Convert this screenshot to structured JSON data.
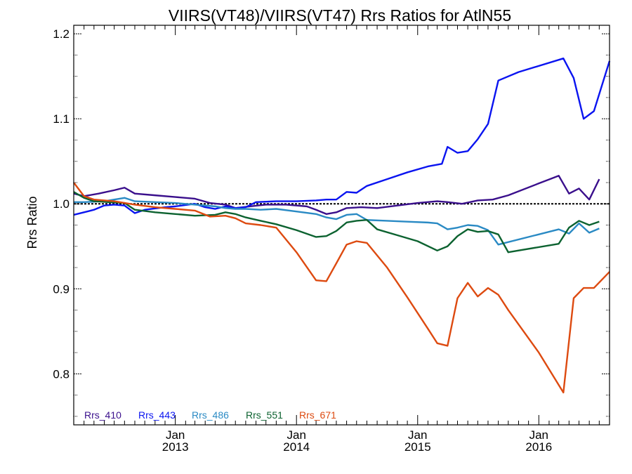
{
  "chart_data": {
    "type": "line",
    "title": "VIIRS(VT48)/VIIRS(VT47)  Rrs Ratios for AtlN55",
    "xlabel": "",
    "ylabel": "Rrs Ratio",
    "xlim": [
      "2012-03-01",
      "2016-08-01"
    ],
    "ylim": [
      0.74,
      1.21
    ],
    "yticks": [
      0.8,
      0.9,
      1.0,
      1.1,
      1.2
    ],
    "ytick_labels": [
      "0.8",
      "0.9",
      "1.0",
      "1.1",
      "1.2"
    ],
    "xticks": [
      {
        "date": "2013-01-01",
        "month": "Jan",
        "year": "2013"
      },
      {
        "date": "2014-01-01",
        "month": "Jan",
        "year": "2014"
      },
      {
        "date": "2015-01-01",
        "month": "Jan",
        "year": "2015"
      },
      {
        "date": "2016-01-01",
        "month": "Jan",
        "year": "2016"
      }
    ],
    "reference_line": 1.0,
    "legend_position": "bottom-left",
    "grid": false,
    "series": [
      {
        "name": "Rrs_410",
        "color": "#3a0f8c",
        "points": [
          [
            "2012-03-01",
            1.012
          ],
          [
            "2012-04-01",
            1.009
          ],
          [
            "2012-05-15",
            1.012
          ],
          [
            "2012-07-01",
            1.016
          ],
          [
            "2012-08-01",
            1.019
          ],
          [
            "2012-09-01",
            1.012
          ],
          [
            "2012-11-01",
            1.01
          ],
          [
            "2013-01-01",
            1.008
          ],
          [
            "2013-03-01",
            1.006
          ],
          [
            "2013-04-15",
            1.001
          ],
          [
            "2013-06-01",
            0.999
          ],
          [
            "2013-07-01",
            0.995
          ],
          [
            "2013-08-15",
            0.997
          ],
          [
            "2013-10-01",
            0.999
          ],
          [
            "2013-12-01",
            0.999
          ],
          [
            "2014-02-01",
            0.997
          ],
          [
            "2014-03-01",
            0.993
          ],
          [
            "2014-04-01",
            0.988
          ],
          [
            "2014-05-01",
            0.99
          ],
          [
            "2014-06-01",
            0.995
          ],
          [
            "2014-07-15",
            0.996
          ],
          [
            "2014-09-01",
            0.995
          ],
          [
            "2014-11-01",
            0.998
          ],
          [
            "2015-01-01",
            1.001
          ],
          [
            "2015-03-01",
            1.003
          ],
          [
            "2015-04-01",
            1.002
          ],
          [
            "2015-05-15",
            1.0
          ],
          [
            "2015-07-01",
            1.004
          ],
          [
            "2015-08-15",
            1.005
          ],
          [
            "2015-10-01",
            1.01
          ],
          [
            "2016-01-01",
            1.024
          ],
          [
            "2016-03-01",
            1.033
          ],
          [
            "2016-04-01",
            1.012
          ],
          [
            "2016-05-01",
            1.018
          ],
          [
            "2016-06-01",
            1.005
          ],
          [
            "2016-07-01",
            1.029
          ]
        ]
      },
      {
        "name": "Rrs_443",
        "color": "#0a14f0",
        "points": [
          [
            "2012-03-01",
            0.987
          ],
          [
            "2012-04-01",
            0.99
          ],
          [
            "2012-05-01",
            0.993
          ],
          [
            "2012-06-01",
            0.998
          ],
          [
            "2012-07-01",
            0.999
          ],
          [
            "2012-08-01",
            0.998
          ],
          [
            "2012-09-01",
            0.989
          ],
          [
            "2012-10-01",
            0.993
          ],
          [
            "2012-12-01",
            0.996
          ],
          [
            "2013-01-01",
            0.997
          ],
          [
            "2013-03-01",
            1.0
          ],
          [
            "2013-04-01",
            0.996
          ],
          [
            "2013-05-01",
            0.994
          ],
          [
            "2013-06-01",
            0.997
          ],
          [
            "2013-07-01",
            0.995
          ],
          [
            "2013-08-01",
            0.996
          ],
          [
            "2013-09-01",
            1.002
          ],
          [
            "2013-11-01",
            1.003
          ],
          [
            "2014-01-01",
            1.003
          ],
          [
            "2014-03-01",
            1.004
          ],
          [
            "2014-04-01",
            1.005
          ],
          [
            "2014-05-01",
            1.005
          ],
          [
            "2014-06-01",
            1.014
          ],
          [
            "2014-07-01",
            1.013
          ],
          [
            "2014-08-01",
            1.021
          ],
          [
            "2014-10-01",
            1.029
          ],
          [
            "2014-12-01",
            1.037
          ],
          [
            "2015-02-01",
            1.044
          ],
          [
            "2015-03-15",
            1.047
          ],
          [
            "2015-04-01",
            1.067
          ],
          [
            "2015-05-01",
            1.06
          ],
          [
            "2015-06-01",
            1.062
          ],
          [
            "2015-07-01",
            1.076
          ],
          [
            "2015-08-01",
            1.094
          ],
          [
            "2015-09-01",
            1.145
          ],
          [
            "2015-11-01",
            1.155
          ],
          [
            "2016-03-15",
            1.171
          ],
          [
            "2016-04-15",
            1.148
          ],
          [
            "2016-05-15",
            1.1
          ],
          [
            "2016-06-15",
            1.109
          ],
          [
            "2016-08-01",
            1.168
          ]
        ]
      },
      {
        "name": "Rrs_486",
        "color": "#2a8ac4",
        "points": [
          [
            "2012-03-01",
            1.002
          ],
          [
            "2012-04-01",
            1.002
          ],
          [
            "2012-06-01",
            1.003
          ],
          [
            "2012-07-01",
            1.005
          ],
          [
            "2012-08-01",
            1.007
          ],
          [
            "2012-09-01",
            1.003
          ],
          [
            "2012-11-01",
            1.002
          ],
          [
            "2013-01-01",
            1.001
          ],
          [
            "2013-03-01",
            0.999
          ],
          [
            "2013-05-01",
            0.997
          ],
          [
            "2013-06-01",
            0.995
          ],
          [
            "2013-07-01",
            0.994
          ],
          [
            "2013-08-01",
            0.994
          ],
          [
            "2013-09-15",
            0.993
          ],
          [
            "2013-11-01",
            0.994
          ],
          [
            "2014-01-01",
            0.991
          ],
          [
            "2014-03-01",
            0.988
          ],
          [
            "2014-04-01",
            0.984
          ],
          [
            "2014-05-01",
            0.982
          ],
          [
            "2014-06-01",
            0.987
          ],
          [
            "2014-07-01",
            0.988
          ],
          [
            "2014-08-01",
            0.981
          ],
          [
            "2014-10-01",
            0.98
          ],
          [
            "2014-12-01",
            0.979
          ],
          [
            "2015-02-01",
            0.978
          ],
          [
            "2015-03-01",
            0.977
          ],
          [
            "2015-04-01",
            0.97
          ],
          [
            "2015-05-01",
            0.972
          ],
          [
            "2015-06-01",
            0.975
          ],
          [
            "2015-07-01",
            0.974
          ],
          [
            "2015-08-01",
            0.969
          ],
          [
            "2015-09-01",
            0.952
          ],
          [
            "2016-03-01",
            0.97
          ],
          [
            "2016-04-01",
            0.965
          ],
          [
            "2016-05-01",
            0.977
          ],
          [
            "2016-06-01",
            0.966
          ],
          [
            "2016-07-01",
            0.971
          ]
        ]
      },
      {
        "name": "Rrs_551",
        "color": "#0c6230",
        "points": [
          [
            "2012-03-01",
            1.014
          ],
          [
            "2012-04-01",
            1.007
          ],
          [
            "2012-05-01",
            1.003
          ],
          [
            "2012-06-15",
            1.002
          ],
          [
            "2012-08-01",
            1.001
          ],
          [
            "2012-09-01",
            0.993
          ],
          [
            "2012-11-01",
            0.99
          ],
          [
            "2013-01-01",
            0.988
          ],
          [
            "2013-03-01",
            0.986
          ],
          [
            "2013-05-01",
            0.987
          ],
          [
            "2013-06-01",
            0.99
          ],
          [
            "2013-07-01",
            0.988
          ],
          [
            "2013-08-01",
            0.984
          ],
          [
            "2013-09-15",
            0.98
          ],
          [
            "2013-11-01",
            0.976
          ],
          [
            "2014-01-01",
            0.969
          ],
          [
            "2014-03-01",
            0.961
          ],
          [
            "2014-04-01",
            0.962
          ],
          [
            "2014-05-01",
            0.968
          ],
          [
            "2014-06-01",
            0.978
          ],
          [
            "2014-07-01",
            0.98
          ],
          [
            "2014-08-01",
            0.981
          ],
          [
            "2014-09-01",
            0.97
          ],
          [
            "2014-11-01",
            0.963
          ],
          [
            "2015-01-01",
            0.956
          ],
          [
            "2015-03-01",
            0.945
          ],
          [
            "2015-04-01",
            0.95
          ],
          [
            "2015-05-01",
            0.962
          ],
          [
            "2015-06-01",
            0.97
          ],
          [
            "2015-07-01",
            0.967
          ],
          [
            "2015-08-01",
            0.968
          ],
          [
            "2015-09-01",
            0.964
          ],
          [
            "2015-10-01",
            0.943
          ],
          [
            "2016-03-01",
            0.953
          ],
          [
            "2016-04-01",
            0.972
          ],
          [
            "2016-05-01",
            0.98
          ],
          [
            "2016-06-01",
            0.975
          ],
          [
            "2016-07-01",
            0.979
          ]
        ]
      },
      {
        "name": "Rrs_671",
        "color": "#dd4a10",
        "points": [
          [
            "2012-03-01",
            1.025
          ],
          [
            "2012-04-01",
            1.009
          ],
          [
            "2012-05-01",
            1.005
          ],
          [
            "2012-07-01",
            1.003
          ],
          [
            "2012-09-01",
            0.999
          ],
          [
            "2012-11-01",
            0.996
          ],
          [
            "2013-01-01",
            0.994
          ],
          [
            "2013-03-01",
            0.992
          ],
          [
            "2013-04-15",
            0.985
          ],
          [
            "2013-06-01",
            0.986
          ],
          [
            "2013-07-01",
            0.983
          ],
          [
            "2013-08-01",
            0.977
          ],
          [
            "2013-09-15",
            0.975
          ],
          [
            "2013-11-01",
            0.972
          ],
          [
            "2014-01-01",
            0.943
          ],
          [
            "2014-03-01",
            0.91
          ],
          [
            "2014-04-01",
            0.909
          ],
          [
            "2014-05-01",
            0.93
          ],
          [
            "2014-06-01",
            0.952
          ],
          [
            "2014-07-01",
            0.956
          ],
          [
            "2014-08-01",
            0.954
          ],
          [
            "2014-10-01",
            0.925
          ],
          [
            "2014-12-01",
            0.89
          ],
          [
            "2015-02-01",
            0.853
          ],
          [
            "2015-03-01",
            0.836
          ],
          [
            "2015-04-01",
            0.833
          ],
          [
            "2015-05-01",
            0.889
          ],
          [
            "2015-06-01",
            0.907
          ],
          [
            "2015-07-01",
            0.891
          ],
          [
            "2015-08-01",
            0.901
          ],
          [
            "2015-09-01",
            0.893
          ],
          [
            "2015-10-01",
            0.875
          ],
          [
            "2016-01-01",
            0.825
          ],
          [
            "2016-03-15",
            0.778
          ],
          [
            "2016-04-15",
            0.889
          ],
          [
            "2016-05-15",
            0.901
          ],
          [
            "2016-06-15",
            0.901
          ],
          [
            "2016-08-01",
            0.92
          ]
        ]
      }
    ]
  }
}
